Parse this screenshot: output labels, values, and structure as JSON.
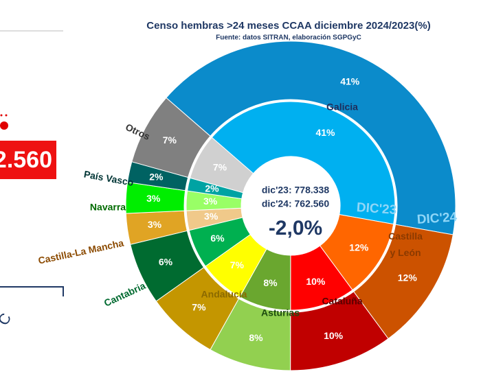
{
  "chart_data": {
    "type": "donut",
    "title": "Censo hembras >24 meses CCAA diciembre 2024/2023(%)",
    "subtitle": "Fuente: datos SITRAN, elaboración SGPGyC",
    "categories": [
      "Galicia",
      "Castilla y León",
      "Cataluña",
      "Asturias",
      "Andalucía",
      "Cantabria",
      "Castilla-La Mancha",
      "Navarra",
      "País Vasco",
      "Otros"
    ],
    "series": [
      {
        "name": "DIC'23",
        "values": [
          41,
          12,
          10,
          8,
          7,
          6,
          3,
          3,
          2,
          7
        ],
        "value_labels": [
          "41%",
          "12%",
          "10%",
          "8%",
          "7%",
          "6%",
          "3%",
          "3%",
          "2%",
          "7%"
        ],
        "colors": [
          "#00b0f0",
          "#ff6600",
          "#ff0000",
          "#6aa72f",
          "#ffff00",
          "#00b050",
          "#f0c98a",
          "#99ff66",
          "#00a3a3",
          "#d0d0d0"
        ]
      },
      {
        "name": "DIC'24",
        "values": [
          41,
          12,
          10,
          8,
          7,
          6,
          3,
          3,
          2,
          7
        ],
        "value_labels": [
          "41%",
          "12%",
          "10%",
          "8%",
          "7%",
          "6%",
          "3%",
          "3%",
          "2%",
          "7%"
        ],
        "colors": [
          "#0b8bcb",
          "#cc5200",
          "#c00000",
          "#92d050",
          "#c49600",
          "#006b30",
          "#e0a424",
          "#00ee00",
          "#006262",
          "#808080"
        ]
      }
    ],
    "center_labels": [
      "dic'23: 778.338",
      "dic'24: 762.560",
      "-2,0%"
    ]
  },
  "fragments": {
    "value": "2.560",
    "glyph": "C"
  }
}
